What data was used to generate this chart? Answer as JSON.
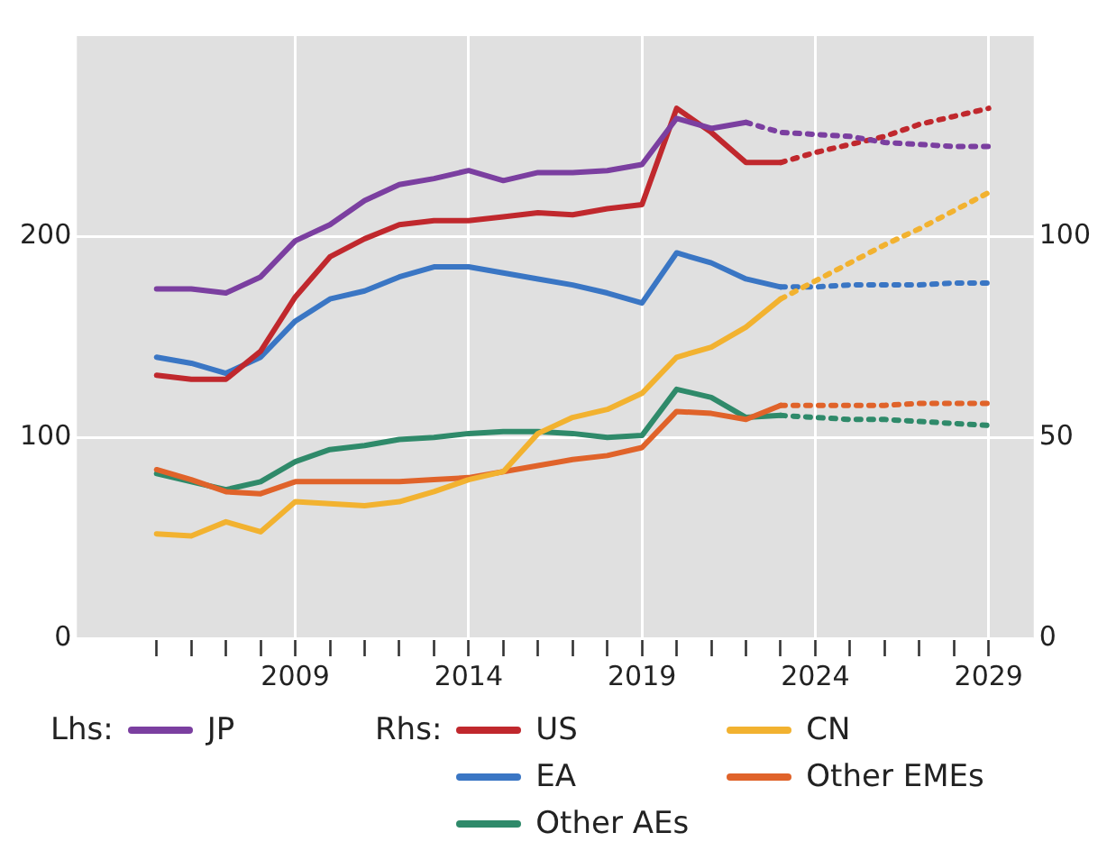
{
  "chart_data": {
    "type": "line",
    "xlim": [
      2002.7,
      2030.3
    ],
    "xticks": [
      {
        "value": 2005,
        "label": null
      },
      {
        "value": 2006,
        "label": null
      },
      {
        "value": 2007,
        "label": null
      },
      {
        "value": 2008,
        "label": null
      },
      2009,
      {
        "value": 2010,
        "label": null
      },
      {
        "value": 2011,
        "label": null
      },
      {
        "value": 2012,
        "label": null
      },
      {
        "value": 2013,
        "label": null
      },
      2014,
      {
        "value": 2015,
        "label": null
      },
      {
        "value": 2016,
        "label": null
      },
      {
        "value": 2017,
        "label": null
      },
      {
        "value": 2018,
        "label": null
      },
      2019,
      {
        "value": 2020,
        "label": null
      },
      {
        "value": 2021,
        "label": null
      },
      {
        "value": 2022,
        "label": null
      },
      {
        "value": 2023,
        "label": null
      },
      2024,
      {
        "value": 2025,
        "label": null
      },
      {
        "value": 2026,
        "label": null
      },
      {
        "value": 2027,
        "label": null
      },
      {
        "value": 2028,
        "label": null
      },
      2029
    ],
    "ylim": [
      0,
      300
    ],
    "yticks": [
      0,
      100,
      200
    ],
    "y2lim": [
      0,
      150
    ],
    "y2ticks": [
      0,
      50,
      100
    ],
    "grid": true,
    "legend": "bottom",
    "marker": "none",
    "annotations": [
      "Lhs:",
      "Rhs:"
    ],
    "series": [
      {
        "name": "JP",
        "color": "#7b3fa0",
        "line_style": "solid",
        "x": [
          2005,
          2006,
          2007,
          2008,
          2009,
          2010,
          2011,
          2012,
          2013,
          2014,
          2015,
          2016,
          2017,
          2018,
          2019,
          2020,
          2021,
          2022
        ],
        "values": [
          174,
          174,
          172,
          180,
          198,
          206,
          218,
          226,
          229,
          233,
          228,
          232,
          232,
          233,
          236,
          259,
          254,
          257
        ]
      },
      {
        "color": "#7b3fa0",
        "line_style": "dotted",
        "x": [
          2022,
          2023,
          2024,
          2025,
          2026,
          2027,
          2028,
          2029
        ],
        "values": [
          257,
          252,
          251,
          250,
          247,
          246,
          245,
          245
        ]
      },
      {
        "name": "US",
        "color": "#c0282d",
        "axis": "y2",
        "line_style": "solid",
        "x": [
          2005,
          2006,
          2007,
          2008,
          2009,
          2010,
          2011,
          2012,
          2013,
          2014,
          2015,
          2016,
          2017,
          2018,
          2019,
          2020,
          2021,
          2022,
          2023
        ],
        "values": [
          65.5,
          64.5,
          64.5,
          71.5,
          85,
          95,
          99.5,
          103,
          104,
          104,
          105,
          106,
          105.5,
          107,
          108,
          132,
          126,
          118.5,
          118.5
        ]
      },
      {
        "color": "#c0282d",
        "axis": "y2",
        "line_style": "dotted",
        "x": [
          2023,
          2024,
          2025,
          2026,
          2027,
          2028,
          2029
        ],
        "values": [
          118.5,
          121,
          123,
          125,
          128,
          130,
          132
        ]
      },
      {
        "name": "CN",
        "color": "#f2b230",
        "axis": "y2",
        "line_style": "solid",
        "x": [
          2005,
          2006,
          2007,
          2008,
          2009,
          2010,
          2011,
          2012,
          2013,
          2014,
          2015,
          2016,
          2017,
          2018,
          2019,
          2020,
          2021,
          2022,
          2023
        ],
        "values": [
          26,
          25.5,
          29,
          26.5,
          34,
          33.5,
          33,
          34,
          36.5,
          39.5,
          41.5,
          51,
          55,
          57,
          61,
          70,
          72.5,
          77.5,
          84.5
        ]
      },
      {
        "color": "#f2b230",
        "axis": "y2",
        "line_style": "dotted",
        "x": [
          2023,
          2024,
          2025,
          2026,
          2027,
          2028,
          2029
        ],
        "values": [
          84.5,
          89,
          93.5,
          98,
          102,
          106.5,
          111
        ]
      },
      {
        "name": "EA",
        "color": "#3a76c4",
        "axis": "y2",
        "line_style": "solid",
        "x": [
          2005,
          2006,
          2007,
          2008,
          2009,
          2010,
          2011,
          2012,
          2013,
          2014,
          2015,
          2016,
          2017,
          2018,
          2019,
          2020,
          2021,
          2022,
          2023
        ],
        "values": [
          70,
          68.5,
          66,
          70,
          79,
          84.5,
          86.5,
          90,
          92.5,
          92.5,
          91,
          89.5,
          88,
          86,
          83.5,
          96,
          93.5,
          89.5,
          87.5
        ]
      },
      {
        "color": "#3a76c4",
        "axis": "y2",
        "line_style": "dotted",
        "x": [
          2023,
          2024,
          2025,
          2026,
          2027,
          2028,
          2029
        ],
        "values": [
          87.5,
          87.5,
          88,
          88,
          88,
          88.5,
          88.5
        ]
      },
      {
        "name": "Other EMEs",
        "color": "#e0632a",
        "axis": "y2",
        "line_style": "solid",
        "x": [
          2005,
          2006,
          2007,
          2008,
          2009,
          2010,
          2011,
          2012,
          2013,
          2014,
          2015,
          2016,
          2017,
          2018,
          2019,
          2020,
          2021,
          2022,
          2023
        ],
        "values": [
          42,
          39.5,
          36.5,
          36,
          39,
          39,
          39,
          39,
          39.5,
          40,
          41.5,
          43,
          44.5,
          45.5,
          47.5,
          56.5,
          56,
          54.5,
          58
        ]
      },
      {
        "color": "#e0632a",
        "axis": "y2",
        "line_style": "dotted",
        "x": [
          2023,
          2024,
          2025,
          2026,
          2027,
          2028,
          2029
        ],
        "values": [
          58,
          58,
          58,
          58,
          58.5,
          58.5,
          58.5
        ]
      },
      {
        "name": "Other AEs",
        "color": "#2f8a6a",
        "axis": "y2",
        "line_style": "solid",
        "x": [
          2005,
          2006,
          2007,
          2008,
          2009,
          2010,
          2011,
          2012,
          2013,
          2014,
          2015,
          2016,
          2017,
          2018,
          2019,
          2020,
          2021,
          2022,
          2023
        ],
        "values": [
          41,
          39,
          37,
          39,
          44,
          47,
          48,
          49.5,
          50,
          51,
          51.5,
          51.5,
          51,
          50,
          50.5,
          62,
          60,
          55,
          55.5
        ]
      },
      {
        "color": "#2f8a6a",
        "axis": "y2",
        "line_style": "dotted",
        "x": [
          2023,
          2024,
          2025,
          2026,
          2027,
          2028,
          2029
        ],
        "values": [
          55.5,
          55,
          54.5,
          54.5,
          54,
          53.5,
          53
        ]
      }
    ]
  }
}
